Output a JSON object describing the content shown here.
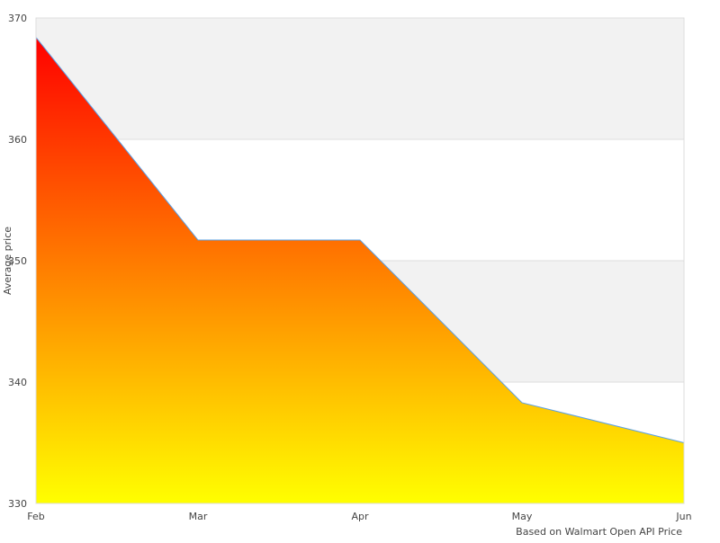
{
  "chart_data": {
    "type": "area",
    "categories": [
      "Feb",
      "Mar",
      "Apr",
      "May",
      "Jun"
    ],
    "series": [
      {
        "values": [
          368.4,
          351.7,
          351.7,
          338.3,
          335.0
        ]
      }
    ],
    "xlabel": "Based on Walmart Open API Price",
    "ylabel": "Average price",
    "ylim": [
      330,
      370
    ],
    "yticks": [
      "330",
      "340",
      "350",
      "360",
      "370"
    ],
    "grid": true,
    "legend": "none",
    "colors": {
      "fill_top": "#ff0000",
      "fill_bottom": "#ffff00",
      "line": "#5aa0e6",
      "band": "#f2f2f2",
      "gridline": "#dddddd"
    }
  }
}
